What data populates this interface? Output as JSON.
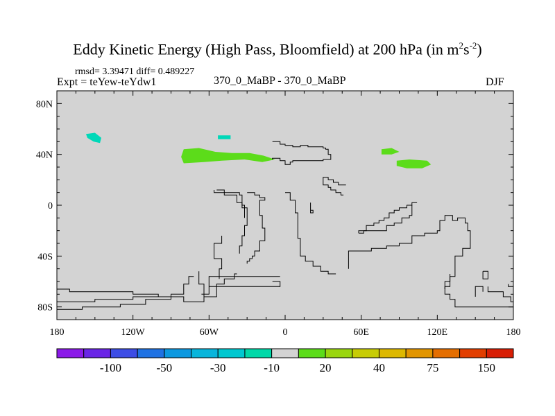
{
  "title": {
    "main": "Eddy Kinetic Energy (High Pass, Bloomfield) at 200 hPa (in m",
    "sup1": "2",
    "mid": "s",
    "sup2": "-2",
    "end": ")"
  },
  "stats": {
    "rmsd_text": "rmsd= 3.39471 diff= 0.489227"
  },
  "left_label": "Expt = teYew-teYdw1",
  "center_label": "370_0_MaBP - 370_0_MaBP",
  "right_label": "DJF",
  "chart_data": {
    "type": "heatmap",
    "title": "Eddy Kinetic Energy (High Pass, Bloomfield) at 200 hPa (in m2s-2)",
    "x_range": [
      -180,
      180
    ],
    "y_range": [
      -90,
      90
    ],
    "x_ticks": [
      {
        "value": -180,
        "label": "180"
      },
      {
        "value": -120,
        "label": "120W"
      },
      {
        "value": -60,
        "label": "60W"
      },
      {
        "value": 0,
        "label": "0"
      },
      {
        "value": 60,
        "label": "60E"
      },
      {
        "value": 120,
        "label": "120E"
      },
      {
        "value": 180,
        "label": "180"
      }
    ],
    "y_ticks": [
      {
        "value": 80,
        "label": "80N"
      },
      {
        "value": 40,
        "label": "40N"
      },
      {
        "value": 0,
        "label": "0"
      },
      {
        "value": -40,
        "label": "40S"
      },
      {
        "value": -80,
        "label": "80S"
      }
    ],
    "background_color": "#d3d3d3",
    "colorbar": {
      "levels": [
        -150,
        -100,
        -75,
        -50,
        -40,
        -30,
        -20,
        -10,
        10,
        20,
        30,
        40,
        50,
        75,
        100,
        150
      ],
      "colors": [
        "#8b1ae8",
        "#6a25e6",
        "#3d4de5",
        "#1f72e3",
        "#0c98e0",
        "#08b5db",
        "#00c8d0",
        "#00d8a8",
        "#d3d3d3",
        "#5cdc1a",
        "#9ad60f",
        "#c7cc05",
        "#ddb800",
        "#e29500",
        "#e46e00",
        "#e23e00",
        "#d81e05"
      ],
      "labels": [
        {
          "level": -100,
          "text": "-100"
        },
        {
          "level": -50,
          "text": "-50"
        },
        {
          "level": -30,
          "text": "-30"
        },
        {
          "level": -10,
          "text": "-10"
        },
        {
          "level": 20,
          "text": "20"
        },
        {
          "level": 40,
          "text": "40"
        },
        {
          "level": 75,
          "text": "75"
        },
        {
          "level": 150,
          "text": "150"
        }
      ]
    },
    "anomaly_patches": [
      {
        "name": "cyan-patch-pacific",
        "color": "#00d8b8",
        "points": [
          [
            -157,
            56
          ],
          [
            -150,
            57
          ],
          [
            -145,
            53
          ],
          [
            -146,
            49
          ],
          [
            -151,
            50
          ],
          [
            -156,
            53
          ]
        ]
      },
      {
        "name": "cyan-patch-atlantic",
        "color": "#00d8b8",
        "points": [
          [
            -53,
            55
          ],
          [
            -43,
            55
          ],
          [
            -43,
            52
          ],
          [
            -53,
            52
          ]
        ]
      },
      {
        "name": "green-patch-north-america",
        "color": "#5cdc1a",
        "points": [
          [
            -80,
            44
          ],
          [
            -68,
            45
          ],
          [
            -55,
            42
          ],
          [
            -42,
            41
          ],
          [
            -28,
            41
          ],
          [
            -17,
            39
          ],
          [
            -8,
            36
          ],
          [
            -18,
            34
          ],
          [
            -32,
            36
          ],
          [
            -50,
            35
          ],
          [
            -64,
            34
          ],
          [
            -80,
            33
          ],
          [
            -82,
            38
          ]
        ]
      },
      {
        "name": "green-patch-central-asia",
        "color": "#5cdc1a",
        "points": [
          [
            76,
            44
          ],
          [
            84,
            45
          ],
          [
            90,
            42
          ],
          [
            84,
            40
          ],
          [
            76,
            40
          ]
        ]
      },
      {
        "name": "green-patch-east-asia",
        "color": "#5cdc1a",
        "points": [
          [
            88,
            35
          ],
          [
            98,
            36
          ],
          [
            112,
            35
          ],
          [
            115,
            32
          ],
          [
            108,
            29
          ],
          [
            96,
            29
          ],
          [
            88,
            31
          ]
        ]
      }
    ],
    "coast_lines": [
      [
        [
          -10,
          50
        ],
        [
          -4,
          50
        ],
        [
          -4,
          48
        ],
        [
          0,
          48
        ],
        [
          0,
          47
        ],
        [
          6,
          47
        ],
        [
          6,
          46
        ],
        [
          12,
          46
        ],
        [
          12,
          47
        ],
        [
          18,
          47
        ],
        [
          18,
          46
        ],
        [
          30,
          46
        ],
        [
          30,
          45
        ],
        [
          32,
          45
        ],
        [
          32,
          44
        ],
        [
          34,
          44
        ],
        [
          34,
          40
        ],
        [
          36,
          40
        ],
        [
          36,
          36
        ],
        [
          30,
          36
        ],
        [
          30,
          35
        ],
        [
          6,
          35
        ],
        [
          6,
          34
        ],
        [
          4,
          34
        ],
        [
          4,
          32
        ],
        [
          0,
          32
        ],
        [
          0,
          35
        ],
        [
          -4,
          35
        ],
        [
          -4,
          37
        ],
        [
          -10,
          37
        ],
        [
          -10,
          36
        ]
      ],
      [
        [
          30,
          20
        ],
        [
          30,
          16
        ],
        [
          34,
          16
        ],
        [
          34,
          14
        ],
        [
          36,
          14
        ],
        [
          36,
          12
        ],
        [
          40,
          12
        ],
        [
          40,
          10
        ],
        [
          44,
          10
        ],
        [
          44,
          8
        ],
        [
          46,
          8
        ]
      ],
      [
        [
          -30,
          10
        ],
        [
          -24,
          10
        ],
        [
          -24,
          8
        ],
        [
          -20,
          8
        ],
        [
          -20,
          6
        ],
        [
          -16,
          6
        ],
        [
          -16,
          4
        ],
        [
          -20,
          4
        ],
        [
          -20,
          -8
        ],
        [
          -18,
          -8
        ],
        [
          -18,
          -18
        ],
        [
          -16,
          -18
        ],
        [
          -16,
          -28
        ],
        [
          -20,
          -28
        ],
        [
          -20,
          -36
        ],
        [
          -24,
          -36
        ],
        [
          -24,
          -40
        ],
        [
          -26,
          -40
        ],
        [
          -26,
          -42
        ],
        [
          -28,
          -42
        ],
        [
          -28,
          -44
        ],
        [
          -30,
          -44
        ],
        [
          -30,
          -46
        ]
      ],
      [
        [
          0,
          10
        ],
        [
          4,
          10
        ],
        [
          4,
          4
        ],
        [
          8,
          4
        ],
        [
          8,
          -6
        ],
        [
          10,
          -6
        ],
        [
          10,
          -26
        ],
        [
          12,
          -26
        ],
        [
          12,
          -40
        ],
        [
          16,
          -40
        ],
        [
          16,
          -44
        ],
        [
          22,
          -44
        ],
        [
          22,
          -48
        ],
        [
          28,
          -48
        ],
        [
          28,
          -52
        ],
        [
          34,
          -52
        ],
        [
          34,
          -54
        ],
        [
          40,
          -54
        ]
      ],
      [
        [
          -54,
          12
        ],
        [
          -48,
          12
        ],
        [
          -48,
          8
        ],
        [
          -38,
          8
        ],
        [
          -38,
          2
        ],
        [
          -34,
          2
        ],
        [
          -34,
          -2
        ],
        [
          -30,
          -2
        ],
        [
          -30,
          -16
        ],
        [
          -32,
          -16
        ],
        [
          -32,
          -24
        ],
        [
          -34,
          -24
        ],
        [
          -34,
          -32
        ],
        [
          -36,
          -32
        ],
        [
          -36,
          -38
        ]
      ],
      [
        [
          -56,
          12
        ],
        [
          -56,
          10
        ],
        [
          -36,
          10
        ],
        [
          -36,
          8
        ],
        [
          -34,
          8
        ],
        [
          -34,
          0
        ],
        [
          -32,
          0
        ],
        [
          -32,
          -10
        ]
      ],
      [
        [
          -50,
          -24
        ],
        [
          -50,
          -30
        ],
        [
          -56,
          -30
        ],
        [
          -56,
          -42
        ],
        [
          -50,
          -42
        ],
        [
          -50,
          -50
        ],
        [
          -52,
          -50
        ],
        [
          -52,
          -58
        ]
      ],
      [
        [
          -38,
          -54
        ],
        [
          -40,
          -54
        ],
        [
          -40,
          -58
        ],
        [
          -48,
          -58
        ],
        [
          -48,
          -62
        ],
        [
          -54,
          -62
        ],
        [
          -54,
          -72
        ],
        [
          -64,
          -72
        ],
        [
          -64,
          -76
        ],
        [
          -80,
          -76
        ],
        [
          -80,
          -72
        ],
        [
          -100,
          -72
        ],
        [
          -100,
          -70
        ],
        [
          -120,
          -70
        ],
        [
          -120,
          -68
        ],
        [
          -170,
          -68
        ],
        [
          -170,
          -66
        ],
        [
          -180,
          -66
        ]
      ],
      [
        [
          -180,
          -82
        ],
        [
          -160,
          -82
        ],
        [
          -160,
          -80
        ],
        [
          -130,
          -80
        ],
        [
          -130,
          -78
        ],
        [
          -110,
          -78
        ],
        [
          -110,
          -74
        ],
        [
          -90,
          -74
        ],
        [
          -90,
          -70
        ],
        [
          -80,
          -70
        ],
        [
          -80,
          -62
        ],
        [
          -76,
          -62
        ],
        [
          -76,
          -56
        ],
        [
          -72,
          -56
        ]
      ],
      [
        [
          -180,
          -76
        ],
        [
          -150,
          -76
        ],
        [
          -150,
          -74
        ],
        [
          -120,
          -74
        ],
        [
          -120,
          -72
        ],
        [
          -100,
          -72
        ]
      ],
      [
        [
          -64,
          -72
        ],
        [
          -64,
          -62
        ],
        [
          -68,
          -62
        ],
        [
          -68,
          -52
        ]
      ],
      [
        [
          -4,
          -56
        ],
        [
          -60,
          -56
        ],
        [
          -60,
          -70
        ],
        [
          -66,
          -70
        ]
      ],
      [
        [
          -10,
          -60
        ],
        [
          -4,
          -60
        ],
        [
          -4,
          -64
        ],
        [
          -60,
          -64
        ]
      ],
      [
        [
          50,
          -50
        ],
        [
          50,
          -36
        ],
        [
          68,
          -36
        ],
        [
          68,
          -34
        ],
        [
          80,
          -34
        ],
        [
          80,
          -32
        ],
        [
          90,
          -32
        ],
        [
          90,
          -30
        ],
        [
          100,
          -30
        ],
        [
          100,
          -24
        ],
        [
          110,
          -24
        ],
        [
          110,
          -22
        ],
        [
          120,
          -22
        ],
        [
          120,
          -20
        ],
        [
          122,
          -20
        ],
        [
          122,
          -12
        ],
        [
          126,
          -12
        ],
        [
          126,
          -8
        ],
        [
          132,
          -8
        ],
        [
          132,
          -12
        ],
        [
          136,
          -12
        ],
        [
          136,
          -10
        ],
        [
          142,
          -10
        ],
        [
          142,
          -14
        ],
        [
          144,
          -14
        ],
        [
          144,
          -20
        ],
        [
          146,
          -20
        ],
        [
          146,
          -34
        ],
        [
          140,
          -34
        ],
        [
          140,
          -40
        ],
        [
          134,
          -40
        ],
        [
          134,
          -56
        ],
        [
          130,
          -56
        ],
        [
          130,
          -60
        ],
        [
          126,
          -60
        ],
        [
          126,
          -70
        ],
        [
          130,
          -70
        ],
        [
          130,
          -74
        ],
        [
          134,
          -74
        ],
        [
          134,
          -80
        ],
        [
          180,
          -80
        ]
      ],
      [
        [
          58,
          -22
        ],
        [
          58,
          -20
        ],
        [
          64,
          -20
        ],
        [
          64,
          -16
        ],
        [
          70,
          -16
        ],
        [
          70,
          -14
        ],
        [
          74,
          -14
        ],
        [
          74,
          -12
        ],
        [
          78,
          -12
        ],
        [
          78,
          -10
        ],
        [
          82,
          -10
        ],
        [
          82,
          -6
        ],
        [
          86,
          -6
        ],
        [
          86,
          -4
        ],
        [
          90,
          -4
        ],
        [
          90,
          -2
        ],
        [
          96,
          -2
        ],
        [
          96,
          0
        ],
        [
          100,
          0
        ],
        [
          100,
          2
        ],
        [
          104,
          2
        ]
      ],
      [
        [
          58,
          -22
        ],
        [
          62,
          -22
        ],
        [
          62,
          -20
        ],
        [
          80,
          -20
        ],
        [
          80,
          -16
        ],
        [
          86,
          -16
        ],
        [
          86,
          -14
        ],
        [
          92,
          -14
        ],
        [
          92,
          -10
        ],
        [
          98,
          -10
        ],
        [
          98,
          -8
        ],
        [
          100,
          -8
        ],
        [
          100,
          0
        ]
      ],
      [
        [
          130,
          -54
        ],
        [
          130,
          -64
        ],
        [
          126,
          -64
        ],
        [
          126,
          -66
        ]
      ],
      [
        [
          156,
          -52
        ],
        [
          156,
          -58
        ],
        [
          160,
          -58
        ],
        [
          160,
          -52
        ],
        [
          156,
          -52
        ]
      ],
      [
        [
          160,
          -64
        ],
        [
          160,
          -68
        ],
        [
          172,
          -68
        ],
        [
          172,
          -72
        ],
        [
          178,
          -72
        ],
        [
          178,
          -76
        ],
        [
          180,
          -76
        ]
      ],
      [
        [
          150,
          -72
        ],
        [
          150,
          -64
        ],
        [
          156,
          -64
        ],
        [
          156,
          -68
        ]
      ],
      [
        [
          176,
          -62
        ],
        [
          176,
          -64
        ],
        [
          180,
          -64
        ]
      ],
      [
        [
          30,
          20
        ],
        [
          30,
          22
        ],
        [
          34,
          22
        ],
        [
          34,
          20
        ],
        [
          38,
          20
        ],
        [
          38,
          18
        ],
        [
          42,
          18
        ],
        [
          42,
          16
        ],
        [
          48,
          16
        ]
      ],
      [
        [
          20,
          2
        ],
        [
          20,
          -6
        ],
        [
          22,
          -6
        ],
        [
          22,
          -4
        ],
        [
          20,
          -4
        ]
      ]
    ]
  }
}
